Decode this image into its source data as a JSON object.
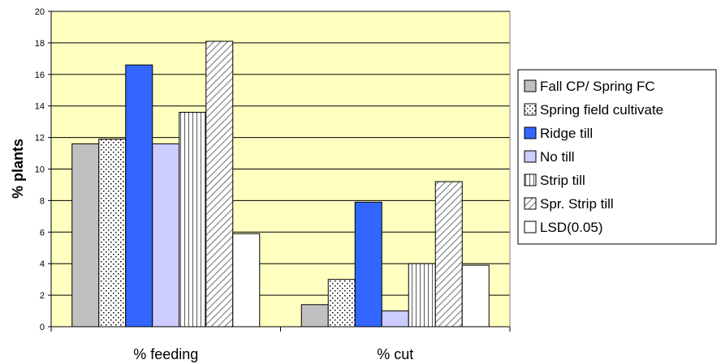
{
  "chart_data": {
    "type": "bar",
    "ylabel": "% plants",
    "xlabel": "",
    "ylim": [
      0,
      20
    ],
    "yticks": [
      "0",
      "2",
      "4",
      "6",
      "8",
      "10",
      "12",
      "14",
      "16",
      "18",
      "20"
    ],
    "categories": [
      "% feeding",
      "% cut"
    ],
    "grid": true,
    "legend_position": "right",
    "plot_background": "#FFFFC0",
    "series": [
      {
        "name": "Fall CP/ Spring FC",
        "values": [
          11.6,
          1.4
        ],
        "color": "#C0C0C0",
        "pattern": "solid"
      },
      {
        "name": "Spring field cultivate",
        "values": [
          11.9,
          3.0
        ],
        "color": "#FFFFFF",
        "pattern": "dots"
      },
      {
        "name": "Ridge till",
        "values": [
          16.6,
          7.9
        ],
        "color": "#3366FF",
        "pattern": "solid"
      },
      {
        "name": "No till",
        "values": [
          11.6,
          1.0
        ],
        "color": "#CCCCFF",
        "pattern": "solid"
      },
      {
        "name": "Strip till",
        "values": [
          13.6,
          4.0
        ],
        "color": "#FFFFFF",
        "pattern": "vertical-lines"
      },
      {
        "name": "Spr. Strip till",
        "values": [
          18.1,
          9.2
        ],
        "color": "#FFFFFF",
        "pattern": "diagonal"
      },
      {
        "name": "LSD(0.05)",
        "values": [
          5.9,
          3.9
        ],
        "color": "#FFFFFF",
        "pattern": "solid"
      }
    ]
  }
}
